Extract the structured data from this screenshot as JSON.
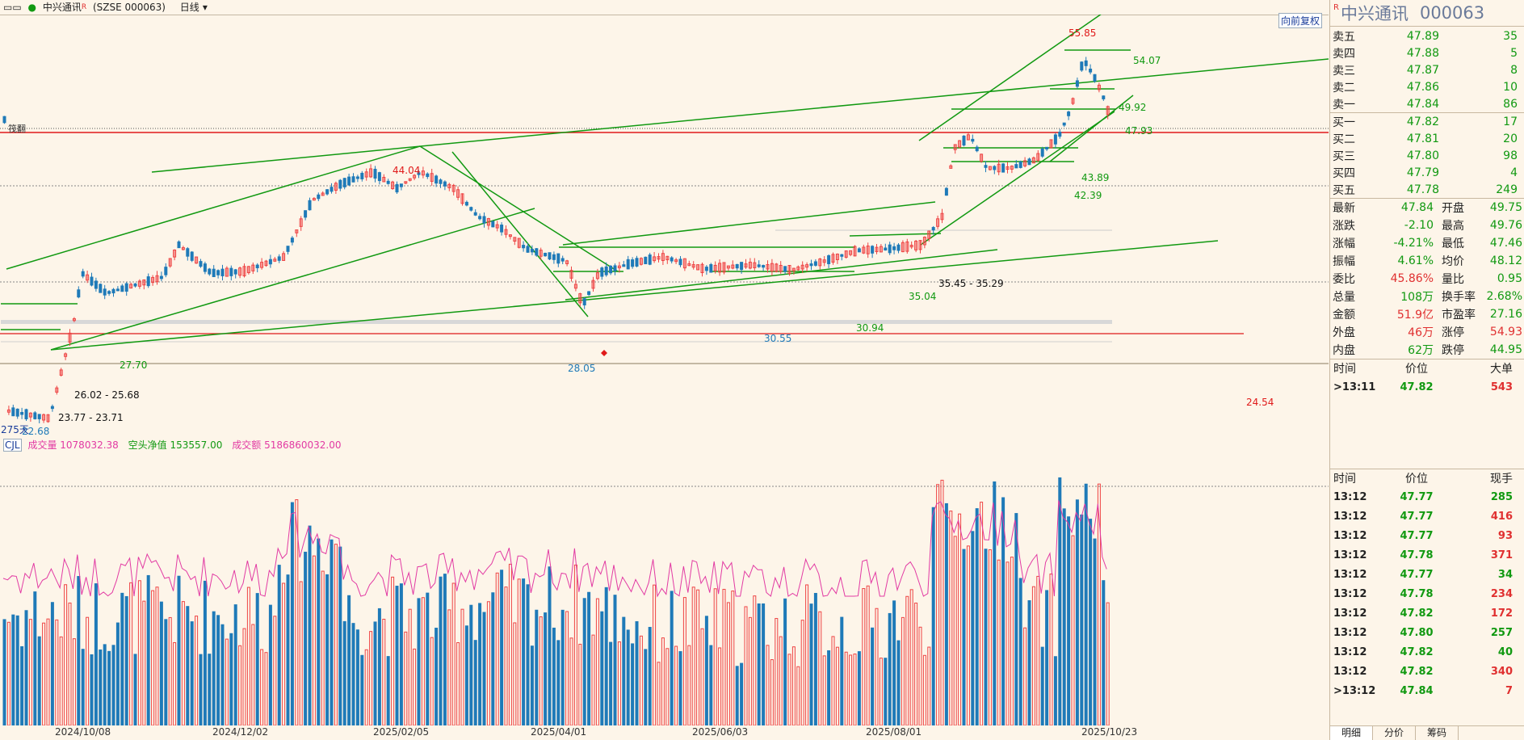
{
  "title_bar": {
    "icon": "minimize-icon",
    "stock": "中兴通讯",
    "rmark": "R",
    "code": "(SZSE 000063)",
    "period": "日线"
  },
  "chart": {
    "fq_button": "向前复权",
    "cost_label": "筏翻",
    "price_labels": {
      "high": "55.85",
      "l5407": "54.07",
      "l4992": "49.92",
      "l4793": "47.93",
      "l4404": "44.04",
      "l4389": "43.89",
      "l4239": "42.39",
      "l3545": "35.45 - 35.29",
      "l3504": "35.04",
      "l3094": "30.94",
      "l3055": "30.55",
      "l2805": "28.05",
      "l2770": "27.70",
      "l2602": "26.02 - 25.68",
      "l2377": "23.77 - 23.71",
      "l2454": "24.54",
      "l2268": "22.68",
      "l275": "275天"
    },
    "indicator": {
      "name": "CJL",
      "cjl_label": "成交量",
      "cjl_value": "1078032.38",
      "kong_label": "空头净值",
      "kong_value": "153557.00",
      "cje_label": "成交额",
      "cje_value": "5186860032.00"
    },
    "dates": [
      "2024/10/08",
      "2024/12/02",
      "2025/02/05",
      "2025/04/01",
      "2025/06/03",
      "2025/08/01",
      "2025/10/23"
    ]
  },
  "panel": {
    "rmark": "R",
    "name": "中兴通讯",
    "code": "000063",
    "sell": [
      {
        "label": "卖五",
        "price": "47.89",
        "vol": "35"
      },
      {
        "label": "卖四",
        "price": "47.88",
        "vol": "5"
      },
      {
        "label": "卖三",
        "price": "47.87",
        "vol": "8"
      },
      {
        "label": "卖二",
        "price": "47.86",
        "vol": "10"
      },
      {
        "label": "卖一",
        "price": "47.84",
        "vol": "86"
      }
    ],
    "buy": [
      {
        "label": "买一",
        "price": "47.82",
        "vol": "17"
      },
      {
        "label": "买二",
        "price": "47.81",
        "vol": "20"
      },
      {
        "label": "买三",
        "price": "47.80",
        "vol": "98"
      },
      {
        "label": "买四",
        "price": "47.79",
        "vol": "4"
      },
      {
        "label": "买五",
        "price": "47.78",
        "vol": "249"
      }
    ],
    "stats": [
      {
        "k1": "最新",
        "v1": "47.84",
        "c1": "grn",
        "k2": "开盘",
        "v2": "49.75",
        "c2": "grn"
      },
      {
        "k1": "涨跌",
        "v1": "-2.10",
        "c1": "grn",
        "k2": "最高",
        "v2": "49.76",
        "c2": "grn"
      },
      {
        "k1": "涨幅",
        "v1": "-4.21%",
        "c1": "grn",
        "k2": "最低",
        "v2": "47.46",
        "c2": "grn"
      },
      {
        "k1": "振幅",
        "v1": "4.61%",
        "c1": "grn",
        "k2": "均价",
        "v2": "48.12",
        "c2": "grn"
      },
      {
        "k1": "委比",
        "v1": "45.86%",
        "c1": "red",
        "k2": "量比",
        "v2": "0.95",
        "c2": "grn"
      },
      {
        "k1": "总量",
        "v1": "108万",
        "c1": "grn",
        "k2": "换手率",
        "v2": "2.68%",
        "c2": "grn"
      },
      {
        "k1": "金额",
        "v1": "51.9亿",
        "c1": "red",
        "k2": "市盈率",
        "v2": "27.16",
        "c2": "grn"
      },
      {
        "k1": "外盘",
        "v1": "46万",
        "c1": "red",
        "k2": "涨停",
        "v2": "54.93",
        "c2": "red"
      },
      {
        "k1": "内盘",
        "v1": "62万",
        "c1": "grn",
        "k2": "跌停",
        "v2": "44.95",
        "c2": "grn"
      }
    ],
    "big_head": {
      "c1": "时间",
      "c2": "价位",
      "c3": "大单"
    },
    "big_row": {
      "time": ">13:11",
      "price": "47.82",
      "vol": "543"
    },
    "tick_head": {
      "c1": "时间",
      "c2": "价位",
      "c3": "现手"
    },
    "ticks": [
      {
        "time": "13:12",
        "price": "47.77",
        "vol": "285",
        "vc": "grn"
      },
      {
        "time": "13:12",
        "price": "47.77",
        "vol": "416",
        "vc": "red"
      },
      {
        "time": "13:12",
        "price": "47.77",
        "vol": "93",
        "vc": "red"
      },
      {
        "time": "13:12",
        "price": "47.78",
        "vol": "371",
        "vc": "red"
      },
      {
        "time": "13:12",
        "price": "47.77",
        "vol": "34",
        "vc": "grn"
      },
      {
        "time": "13:12",
        "price": "47.78",
        "vol": "234",
        "vc": "red"
      },
      {
        "time": "13:12",
        "price": "47.82",
        "vol": "172",
        "vc": "red"
      },
      {
        "time": "13:12",
        "price": "47.80",
        "vol": "257",
        "vc": "grn"
      },
      {
        "time": "13:12",
        "price": "47.82",
        "vol": "40",
        "vc": "grn"
      },
      {
        "time": "13:12",
        "price": "47.82",
        "vol": "340",
        "vc": "red"
      },
      {
        "time": ">13:12",
        "price": "47.84",
        "vol": "7",
        "vc": "red"
      }
    ],
    "tabs": [
      "明细",
      "分价",
      "筹码"
    ]
  },
  "colors": {
    "up": "#ee4444",
    "down": "#1f7ab8",
    "trend": "#119911",
    "hline": "#e01a1a",
    "ma": "#e23aa3",
    "bg": "#fdf5e9"
  }
}
